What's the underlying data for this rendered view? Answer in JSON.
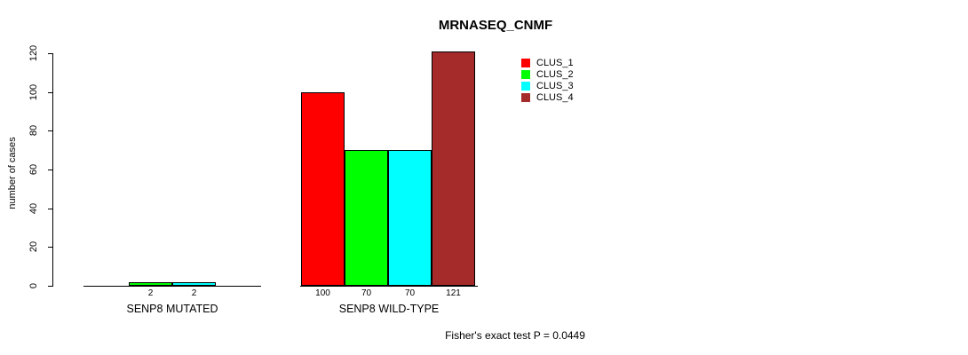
{
  "title": "MRNASEQ_CNMF",
  "footer": "Fisher's exact test P = 0.0449",
  "chart_data": {
    "type": "bar",
    "title": "MRNASEQ_CNMF",
    "xlabel": "",
    "ylabel": "number of cases",
    "ylim": [
      0,
      120
    ],
    "yticks": [
      0,
      20,
      40,
      60,
      80,
      100,
      120
    ],
    "grid": false,
    "legend_position": "top-right-inside",
    "categories": [
      "SENP8 MUTATED",
      "SENP8 WILD-TYPE"
    ],
    "series": [
      {
        "name": "CLUS_1",
        "color": "#FF0000",
        "values": [
          0,
          100
        ]
      },
      {
        "name": "CLUS_2",
        "color": "#00FF00",
        "values": [
          2,
          70
        ]
      },
      {
        "name": "CLUS_3",
        "color": "#00FFFF",
        "values": [
          2,
          70
        ]
      },
      {
        "name": "CLUS_4",
        "color": "#A52A2A",
        "values": [
          0,
          121
        ]
      }
    ],
    "bar_labels": [
      [
        "",
        "2",
        "2",
        ""
      ],
      [
        "100",
        "70",
        "70",
        "121"
      ]
    ],
    "annotation": "Fisher's exact test P = 0.0449",
    "colors": {
      "bar_border": "#000000",
      "axis": "#000000",
      "background": "#FFFFFF"
    }
  }
}
